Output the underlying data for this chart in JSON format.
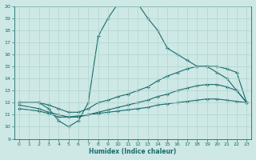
{
  "xlabel": "Humidex (Indice chaleur)",
  "xlim": [
    -0.5,
    23.5
  ],
  "ylim": [
    9,
    20
  ],
  "xticks": [
    0,
    1,
    2,
    3,
    4,
    5,
    6,
    7,
    8,
    9,
    10,
    11,
    12,
    13,
    14,
    15,
    16,
    17,
    18,
    19,
    20,
    21,
    22,
    23
  ],
  "yticks": [
    9,
    10,
    11,
    12,
    13,
    14,
    15,
    16,
    17,
    18,
    19,
    20
  ],
  "bg_color": "#cde8e5",
  "line_color": "#1a6b6b",
  "grid_color": "#b0d4d0",
  "series": [
    {
      "x": [
        0,
        2,
        3,
        4,
        5,
        6,
        7,
        8,
        9,
        10,
        11,
        12,
        13,
        14,
        15,
        16,
        17,
        18,
        19,
        20,
        21,
        22,
        23
      ],
      "y": [
        12,
        12,
        11.5,
        10.5,
        10.0,
        10.5,
        12.0,
        17.5,
        19.0,
        20.2,
        20.3,
        20.2,
        19.0,
        18.0,
        16.5,
        16.0,
        15.5,
        15.0,
        15.0,
        14.5,
        14.0,
        13.0,
        12.0
      ]
    },
    {
      "x": [
        0,
        2,
        3,
        4,
        5,
        6,
        7,
        8,
        9,
        10,
        11,
        12,
        13,
        14,
        15,
        16,
        17,
        18,
        19,
        20,
        21,
        22,
        23
      ],
      "y": [
        12.0,
        12.0,
        11.8,
        11.5,
        11.2,
        11.2,
        11.5,
        12.0,
        12.2,
        12.5,
        12.7,
        13.0,
        13.3,
        13.8,
        14.2,
        14.5,
        14.8,
        15.0,
        15.0,
        15.0,
        14.8,
        14.5,
        12.0
      ]
    },
    {
      "x": [
        0,
        2,
        3,
        4,
        5,
        6,
        7,
        8,
        9,
        10,
        11,
        12,
        13,
        14,
        15,
        16,
        17,
        18,
        19,
        20,
        21,
        22,
        23
      ],
      "y": [
        11.8,
        11.5,
        11.2,
        11.0,
        10.8,
        10.8,
        11.0,
        11.2,
        11.4,
        11.6,
        11.8,
        12.0,
        12.2,
        12.5,
        12.7,
        13.0,
        13.2,
        13.4,
        13.5,
        13.5,
        13.3,
        13.0,
        12.0
      ]
    },
    {
      "x": [
        0,
        2,
        3,
        4,
        5,
        6,
        7,
        8,
        9,
        10,
        11,
        12,
        13,
        14,
        15,
        16,
        17,
        18,
        19,
        20,
        21,
        22,
        23
      ],
      "y": [
        11.5,
        11.3,
        11.1,
        10.8,
        10.8,
        10.9,
        11.0,
        11.1,
        11.2,
        11.3,
        11.4,
        11.5,
        11.6,
        11.8,
        11.9,
        12.0,
        12.1,
        12.2,
        12.3,
        12.3,
        12.2,
        12.1,
        12.0
      ]
    }
  ]
}
